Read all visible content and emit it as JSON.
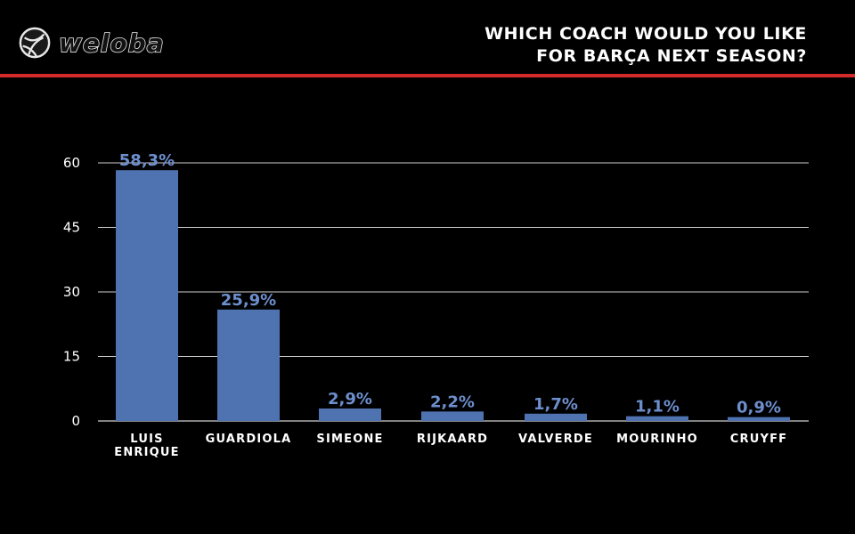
{
  "brand": {
    "logo_text": "weloba",
    "logo_icon": "ball-icon"
  },
  "header": {
    "title_line1": "WHICH COACH WOULD YOU LIKE",
    "title_line2": "FOR BARÇA NEXT SEASON?"
  },
  "colors": {
    "bar": "#4f72b0",
    "data_label": "#6d8fce",
    "accent_rule": "#d32b2b",
    "grid": "#cfcfcf",
    "background": "#000000"
  },
  "chart_data": {
    "type": "bar",
    "title": "WHICH COACH WOULD YOU LIKE FOR BARÇA NEXT SEASON?",
    "categories": [
      [
        "LUIS",
        "ENRIQUE"
      ],
      [
        "GUARDIOLA"
      ],
      [
        "SIMEONE"
      ],
      [
        "RIJKAARD"
      ],
      [
        "VALVERDE"
      ],
      [
        "MOURINHO"
      ],
      [
        "CRUYFF"
      ]
    ],
    "values": [
      58.3,
      25.9,
      2.9,
      2.2,
      1.7,
      1.1,
      0.9
    ],
    "data_labels": [
      "58,3%",
      "25,9%",
      "2,9%",
      "2,2%",
      "1,7%",
      "1,1%",
      "0,9%"
    ],
    "yticks": [
      0,
      15,
      30,
      45,
      60
    ],
    "ylim": [
      0,
      60
    ],
    "xlabel": "",
    "ylabel": "",
    "grid": true,
    "legend": "none"
  }
}
